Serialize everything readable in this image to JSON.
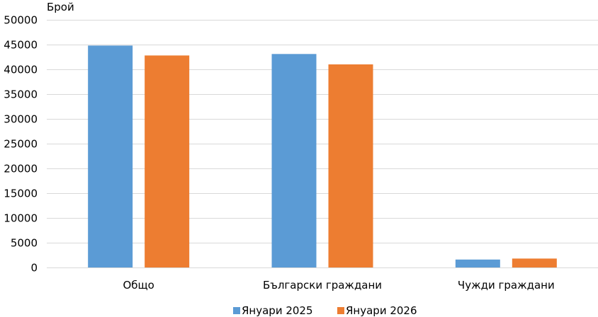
{
  "chart_data": {
    "type": "bar",
    "ylabel": "Брой",
    "xlabel": "",
    "title": "",
    "categories": [
      "Общо",
      "Български граждани",
      "Чужди граждани"
    ],
    "series": [
      {
        "name": "Януари 2025",
        "color": "#5b9bd5",
        "values": [
          44800,
          43100,
          1600
        ]
      },
      {
        "name": "Януари 2026",
        "color": "#ed7d31",
        "values": [
          42800,
          41000,
          1800
        ]
      }
    ],
    "ylim": [
      0,
      50000
    ],
    "yticks": [
      0,
      5000,
      10000,
      15000,
      20000,
      25000,
      30000,
      35000,
      40000,
      45000,
      50000
    ],
    "grid": true,
    "legend": "bottom"
  }
}
